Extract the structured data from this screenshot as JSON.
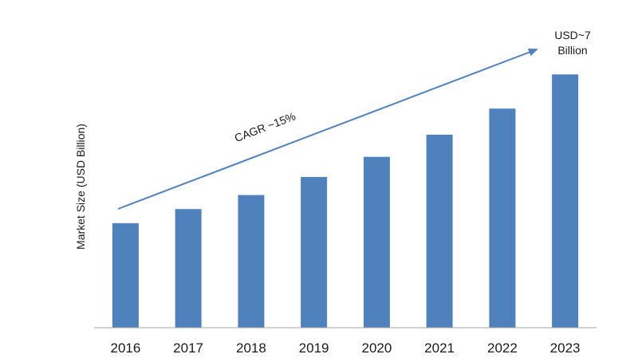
{
  "chart_data": {
    "type": "bar",
    "title": "",
    "xlabel": "",
    "ylabel": "Market Size (USD Billion)",
    "categories": [
      "2016",
      "2017",
      "2018",
      "2019",
      "2020",
      "2021",
      "2022",
      "2023"
    ],
    "values": [
      2.6,
      2.95,
      3.3,
      3.75,
      4.25,
      4.8,
      5.45,
      6.3
    ],
    "ylim": [
      0,
      7
    ],
    "grid": false,
    "legend": "none",
    "bar_color": "#4F81BD",
    "annotations": {
      "cagr": "CAGR ~15%",
      "end_value_line1": "USD~7",
      "end_value_line2": "Billion"
    },
    "arrow_color": "#4F81BD"
  }
}
